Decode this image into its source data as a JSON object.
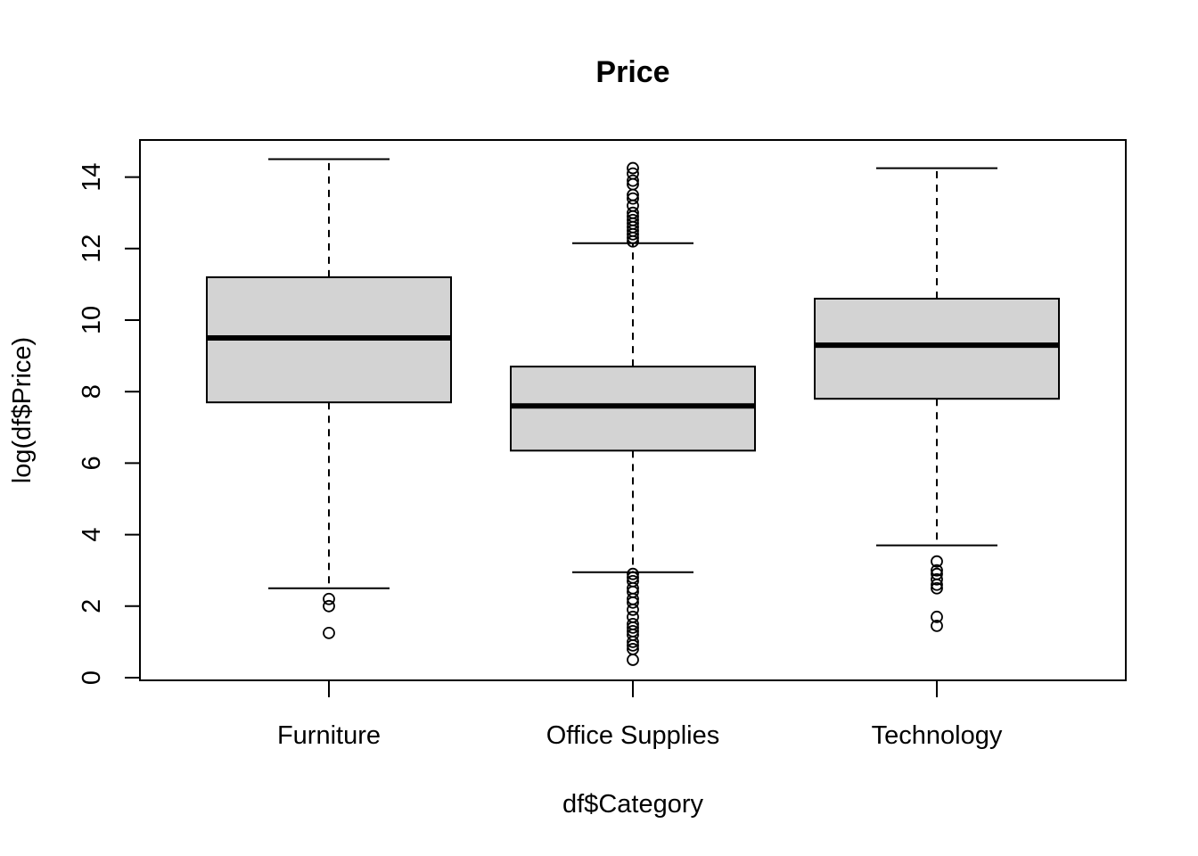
{
  "chart_data": {
    "type": "box",
    "title": "Price",
    "xlabel": "df$Category",
    "ylabel": "log(df$Price)",
    "ylim": [
      0,
      15
    ],
    "yticks": [
      0,
      2,
      4,
      6,
      8,
      10,
      12,
      14
    ],
    "categories": [
      "Furniture",
      "Office Supplies",
      "Technology"
    ],
    "boxes": [
      {
        "category": "Furniture",
        "whisker_low": 2.5,
        "q1": 7.7,
        "median": 9.5,
        "q3": 11.2,
        "whisker_high": 14.5,
        "outliers": [
          2.2,
          2.0,
          1.25
        ]
      },
      {
        "category": "Office Supplies",
        "whisker_low": 2.95,
        "q1": 6.35,
        "median": 7.6,
        "q3": 8.7,
        "whisker_high": 12.15,
        "outliers": [
          12.2,
          12.3,
          12.4,
          12.5,
          12.6,
          12.7,
          12.8,
          12.9,
          13.0,
          13.2,
          13.4,
          13.5,
          13.8,
          13.9,
          14.1,
          14.25,
          2.9,
          2.8,
          2.7,
          2.5,
          2.4,
          2.2,
          2.1,
          1.9,
          1.7,
          1.5,
          1.4,
          1.3,
          1.2,
          1.0,
          0.9,
          0.8,
          0.5
        ]
      },
      {
        "category": "Technology",
        "whisker_low": 3.7,
        "q1": 7.8,
        "median": 9.3,
        "q3": 10.6,
        "whisker_high": 14.25,
        "outliers": [
          3.25,
          3.0,
          2.9,
          2.75,
          2.6,
          2.5,
          1.7,
          1.45
        ]
      }
    ],
    "grid": false,
    "colors": {
      "box_fill": "#d3d3d3",
      "stroke": "#000000"
    }
  }
}
